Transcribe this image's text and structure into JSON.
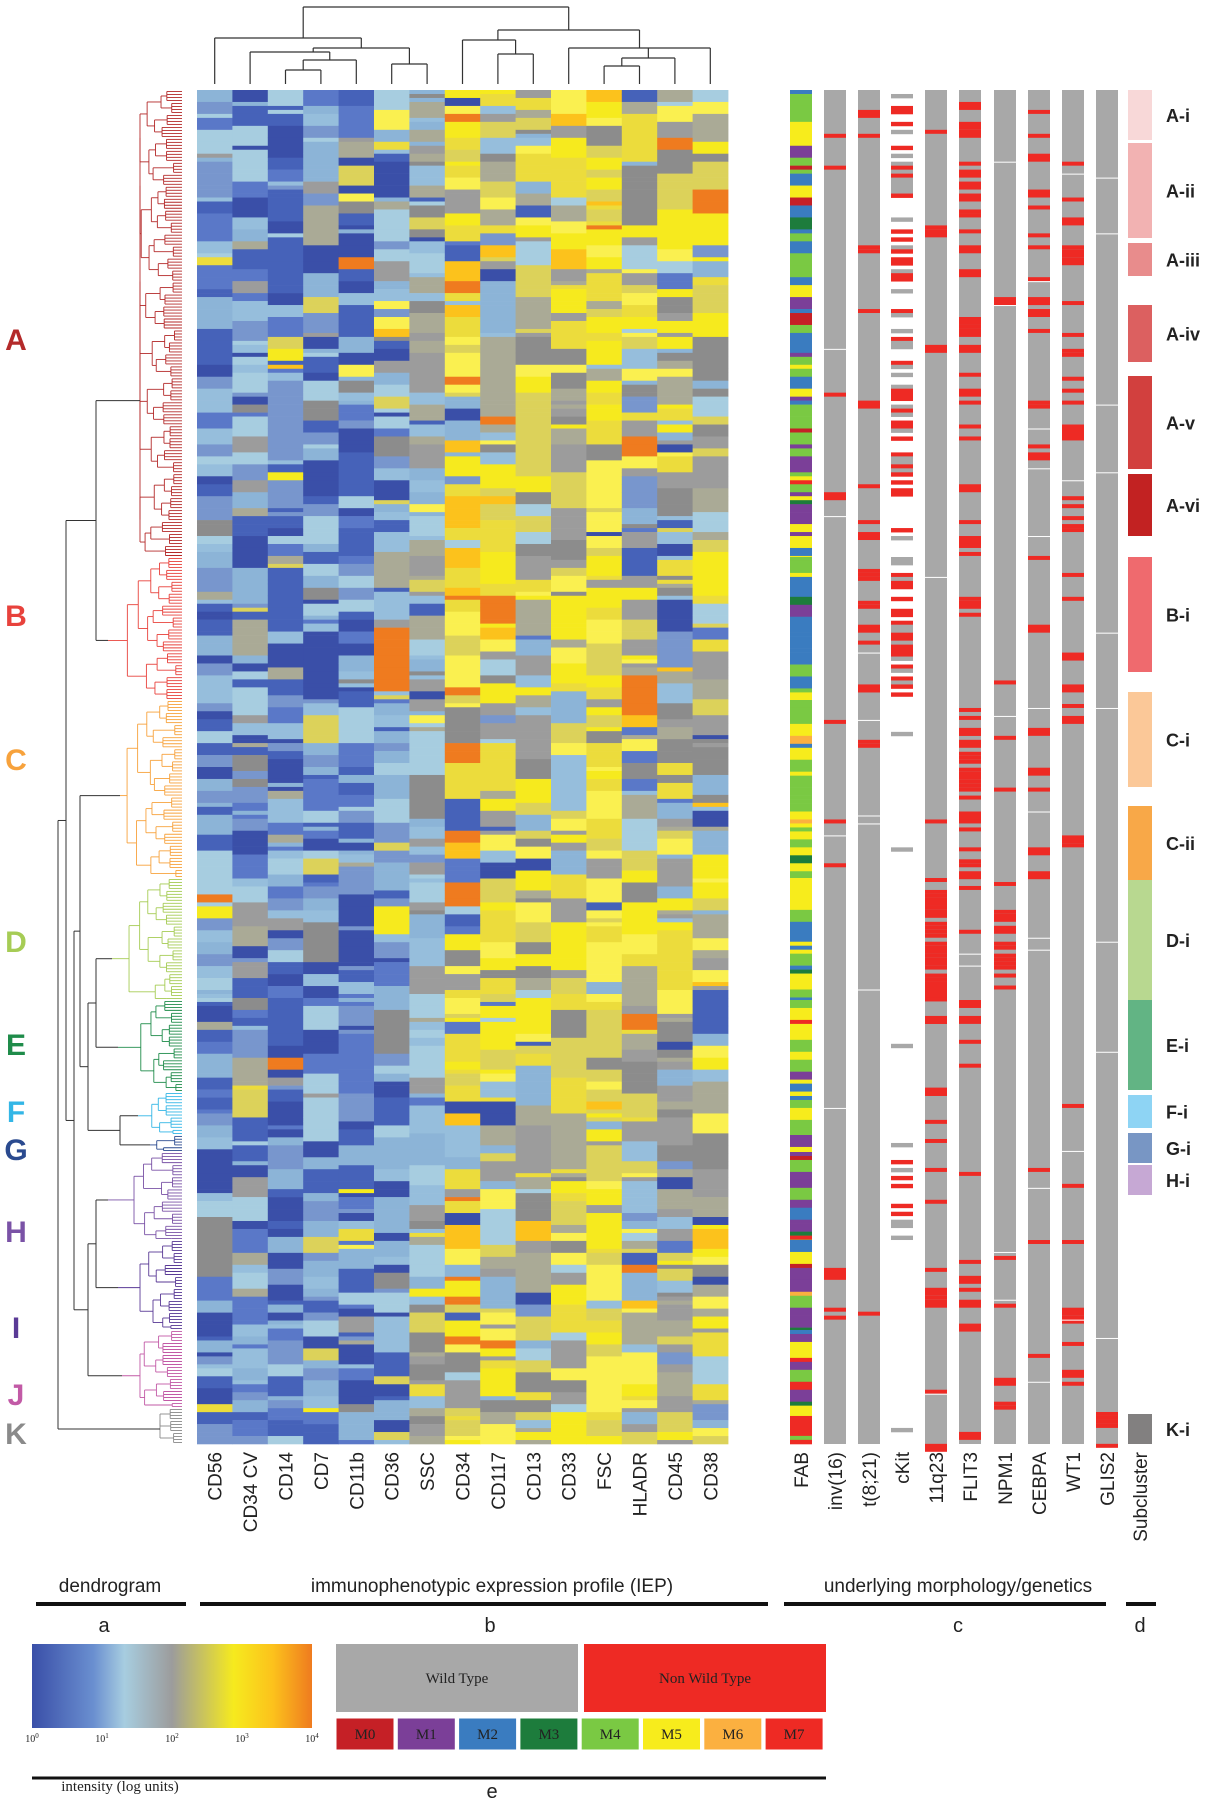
{
  "colors": {
    "wild_type": "#a8a8a8",
    "non_wild_type": "#ee2a24",
    "dendrogram_line": "#444444",
    "heat_low": "#3a4fa8",
    "heat_mid": "#a7cde0",
    "heat_gray": "#9c9c9c",
    "heat_yellow": "#f6ea1e",
    "heat_high": "#ef7b1f"
  },
  "clusters": [
    {
      "label": "A",
      "color": "#b42a2a"
    },
    {
      "label": "B",
      "color": "#e8423c"
    },
    {
      "label": "C",
      "color": "#f7a23c"
    },
    {
      "label": "D",
      "color": "#a6cc55"
    },
    {
      "label": "E",
      "color": "#1f8c4a"
    },
    {
      "label": "F",
      "color": "#33b6e6"
    },
    {
      "label": "G",
      "color": "#2a4a8f"
    },
    {
      "label": "H",
      "color": "#7a52a6"
    },
    {
      "label": "I",
      "color": "#5a3a96"
    },
    {
      "label": "J",
      "color": "#c25aa6"
    },
    {
      "label": "K",
      "color": "#8a8a8a"
    }
  ],
  "iep_columns": [
    "CD56",
    "CD34 CV",
    "CD14",
    "CD7",
    "CD11b",
    "CD36",
    "SSC",
    "CD34",
    "CD117",
    "CD13",
    "CD33",
    "FSC",
    "HLADR",
    "CD45",
    "CD38"
  ],
  "genetic_columns": [
    "FAB",
    "inv(16)",
    "t(8;21)",
    "cKit",
    "11q23",
    "FLIT3",
    "NPM1",
    "CEBPA",
    "WT1",
    "GLIS2",
    "Subcluster"
  ],
  "subclusters": [
    {
      "label": "A-i",
      "color": "#f8d8d8"
    },
    {
      "label": "A-ii",
      "color": "#f2b2b2"
    },
    {
      "label": "A-iii",
      "color": "#e88c8c"
    },
    {
      "label": "A-iv",
      "color": "#dc6060"
    },
    {
      "label": "A-v",
      "color": "#d2403e"
    },
    {
      "label": "A-vi",
      "color": "#c22222"
    },
    {
      "label": "B-i",
      "color": "#ef6a6e"
    },
    {
      "label": "C-i",
      "color": "#fbc898"
    },
    {
      "label": "C-ii",
      "color": "#f8a848"
    },
    {
      "label": "D-i",
      "color": "#b8d890"
    },
    {
      "label": "E-i",
      "color": "#62b484"
    },
    {
      "label": "F-i",
      "color": "#8ed4f4"
    },
    {
      "label": "G-i",
      "color": "#7896c4"
    },
    {
      "label": "H-i",
      "color": "#c6a8d4"
    },
    {
      "label": "K-i",
      "color": "#828080"
    }
  ],
  "sections": [
    {
      "title": "dendrogram",
      "panel": "a"
    },
    {
      "title": "immunophenotypic expression profile (IEP)",
      "panel": "b"
    },
    {
      "title": "underlying morphology/genetics",
      "panel": "c"
    },
    {
      "title": "",
      "panel": "d"
    }
  ],
  "legend": {
    "intensity_label": "intensity (log units)",
    "ticks": [
      {
        "base": "10",
        "exp": "0"
      },
      {
        "base": "10",
        "exp": "1"
      },
      {
        "base": "10",
        "exp": "2"
      },
      {
        "base": "10",
        "exp": "3"
      },
      {
        "base": "10",
        "exp": "4"
      }
    ],
    "wild_type_label": "Wild Type",
    "non_wild_type_label": "Non Wild Type",
    "fab_classes": [
      {
        "label": "M0",
        "color": "#c52026"
      },
      {
        "label": "M1",
        "color": "#7b3f98"
      },
      {
        "label": "M2",
        "color": "#3a7cc0"
      },
      {
        "label": "M3",
        "color": "#1d7c3c"
      },
      {
        "label": "M4",
        "color": "#7ac943"
      },
      {
        "label": "M5",
        "color": "#f7ec1c"
      },
      {
        "label": "M6",
        "color": "#fbb040"
      },
      {
        "label": "M7",
        "color": "#ee2a24"
      }
    ],
    "panel": "e"
  }
}
